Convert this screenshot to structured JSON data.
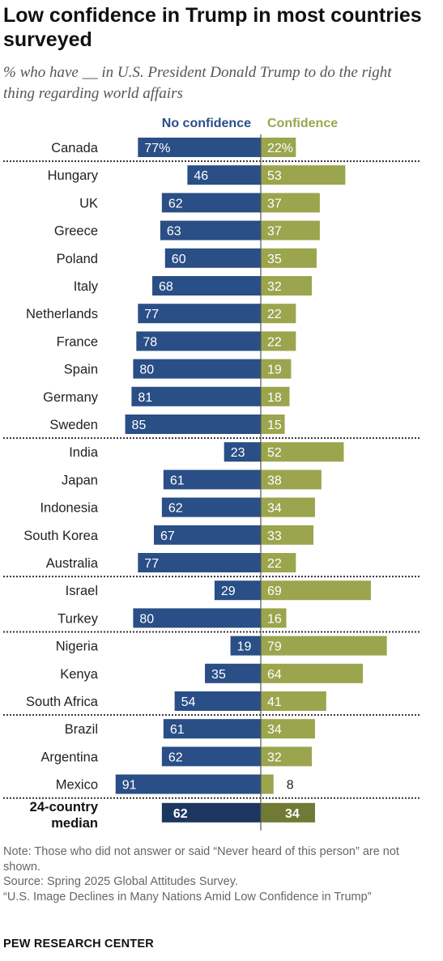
{
  "title": "Low confidence in Trump in most countries surveyed",
  "subtitle": "% who have __ in U.S. President Donald Trump to do the right thing regarding world affairs",
  "colors": {
    "no_confidence": "#2a4e86",
    "confidence": "#9aa54d",
    "median_no_confidence": "#1d3660",
    "median_confidence": "#717a34"
  },
  "chart_data": {
    "type": "bar",
    "orientation": "diverging-horizontal",
    "series": [
      {
        "name": "No confidence",
        "values": [
          77,
          46,
          62,
          63,
          60,
          68,
          77,
          78,
          80,
          81,
          85,
          23,
          61,
          62,
          67,
          77,
          29,
          80,
          19,
          35,
          54,
          61,
          62,
          91
        ]
      },
      {
        "name": "Confidence",
        "values": [
          22,
          53,
          37,
          37,
          35,
          32,
          22,
          22,
          19,
          18,
          15,
          52,
          38,
          34,
          33,
          22,
          69,
          16,
          79,
          64,
          41,
          34,
          32,
          8
        ]
      }
    ],
    "categories": [
      "Canada",
      "Hungary",
      "UK",
      "Greece",
      "Poland",
      "Italy",
      "Netherlands",
      "France",
      "Spain",
      "Germany",
      "Sweden",
      "India",
      "Japan",
      "Indonesia",
      "South Korea",
      "Australia",
      "Israel",
      "Turkey",
      "Nigeria",
      "Kenya",
      "South Africa",
      "Brazil",
      "Argentina",
      "Mexico"
    ],
    "value_labels": {
      "no_confidence": [
        "77%",
        "46",
        "62",
        "63",
        "60",
        "68",
        "77",
        "78",
        "80",
        "81",
        "85",
        "23",
        "61",
        "62",
        "67",
        "77",
        "29",
        "80",
        "19",
        "35",
        "54",
        "61",
        "62",
        "91"
      ],
      "confidence": [
        "22%",
        "53",
        "37",
        "37",
        "35",
        "32",
        "22",
        "22",
        "19",
        "18",
        "15",
        "52",
        "38",
        "34",
        "33",
        "22",
        "69",
        "16",
        "79",
        "64",
        "41",
        "34",
        "32",
        "8"
      ]
    },
    "separators_after": [
      "Canada",
      "Sweden",
      "Australia",
      "Turkey",
      "South Africa",
      "Mexico"
    ],
    "median": {
      "label_lines": [
        "24-country",
        "median"
      ],
      "no_confidence": 62,
      "confidence": 34
    },
    "xlim": [
      0,
      100
    ]
  },
  "footer": {
    "note": "Note: Those who did not answer or said “Never heard of this person” are not shown.",
    "source": "Source: Spring 2025 Global Attitudes Survey.",
    "report": "“U.S. Image Declines in Many Nations Amid Low Confidence in Trump”",
    "brand": "PEW RESEARCH CENTER"
  }
}
